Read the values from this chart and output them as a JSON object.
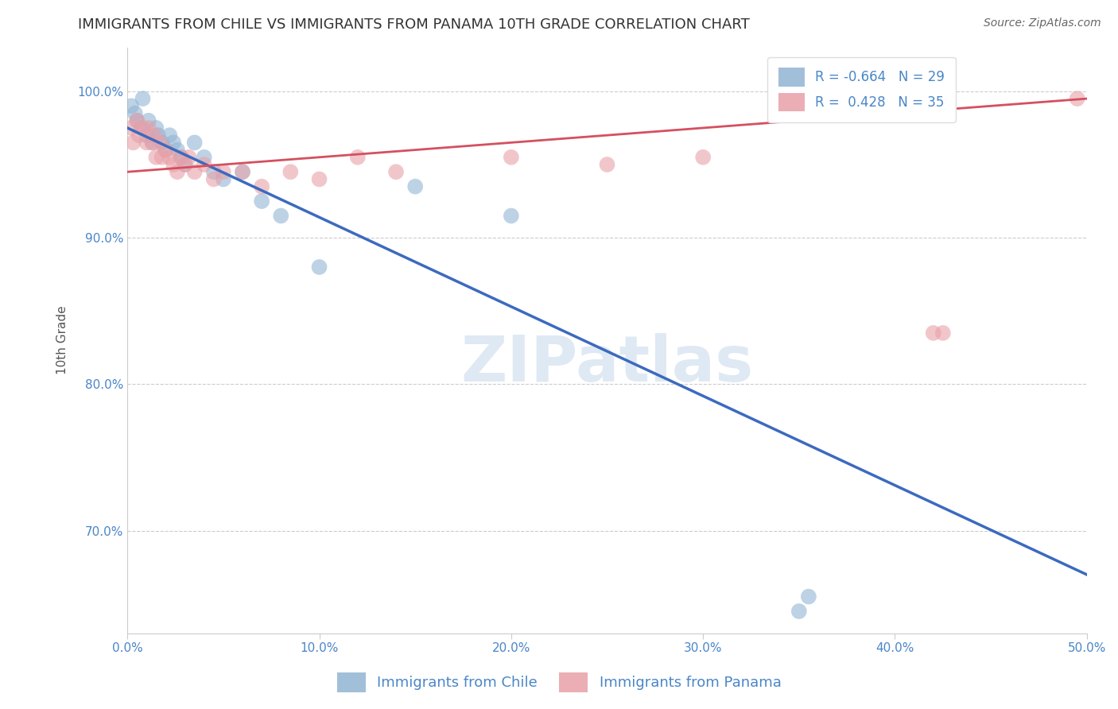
{
  "title": "IMMIGRANTS FROM CHILE VS IMMIGRANTS FROM PANAMA 10TH GRADE CORRELATION CHART",
  "source": "Source: ZipAtlas.com",
  "ylabel": "10th Grade",
  "watermark": "ZIPatlas",
  "xlim": [
    0.0,
    50.0
  ],
  "ylim": [
    63.0,
    103.0
  ],
  "xticks": [
    0.0,
    10.0,
    20.0,
    30.0,
    40.0,
    50.0
  ],
  "yticks": [
    70.0,
    80.0,
    90.0,
    100.0
  ],
  "xtick_labels": [
    "0.0%",
    "10.0%",
    "20.0%",
    "30.0%",
    "40.0%",
    "50.0%"
  ],
  "ytick_labels": [
    "70.0%",
    "80.0%",
    "90.0%",
    "100.0%"
  ],
  "chile_color": "#92b4d4",
  "panama_color": "#e8a0a8",
  "chile_line_color": "#3c6abf",
  "panama_line_color": "#d45060",
  "chile_R": -0.664,
  "chile_N": 29,
  "panama_R": 0.428,
  "panama_N": 35,
  "legend_chile_label": "Immigrants from Chile",
  "legend_panama_label": "Immigrants from Panama",
  "chile_scatter_x": [
    0.2,
    0.4,
    0.5,
    0.7,
    0.8,
    1.0,
    1.1,
    1.3,
    1.5,
    1.6,
    1.8,
    2.0,
    2.2,
    2.4,
    2.6,
    2.8,
    3.0,
    3.5,
    4.0,
    4.5,
    5.0,
    6.0,
    7.0,
    8.0,
    10.0,
    15.0,
    20.0,
    35.0,
    35.5
  ],
  "chile_scatter_y": [
    99.0,
    98.5,
    98.0,
    97.5,
    99.5,
    97.0,
    98.0,
    96.5,
    97.5,
    97.0,
    96.5,
    96.0,
    97.0,
    96.5,
    96.0,
    95.5,
    95.0,
    96.5,
    95.5,
    94.5,
    94.0,
    94.5,
    92.5,
    91.5,
    88.0,
    93.5,
    91.5,
    64.5,
    65.5
  ],
  "panama_scatter_x": [
    0.2,
    0.3,
    0.5,
    0.6,
    0.8,
    1.0,
    1.1,
    1.3,
    1.4,
    1.5,
    1.7,
    1.8,
    2.0,
    2.2,
    2.4,
    2.6,
    2.8,
    3.0,
    3.2,
    3.5,
    4.0,
    4.5,
    5.0,
    6.0,
    7.0,
    8.5,
    10.0,
    12.0,
    14.0,
    20.0,
    25.0,
    30.0,
    42.0,
    42.5,
    49.5
  ],
  "panama_scatter_y": [
    97.5,
    96.5,
    98.0,
    97.0,
    97.5,
    96.5,
    97.5,
    96.5,
    97.0,
    95.5,
    96.5,
    95.5,
    96.0,
    95.5,
    95.0,
    94.5,
    95.5,
    95.0,
    95.5,
    94.5,
    95.0,
    94.0,
    94.5,
    94.5,
    93.5,
    94.5,
    94.0,
    95.5,
    94.5,
    95.5,
    95.0,
    95.5,
    83.5,
    83.5,
    99.5
  ],
  "background_color": "#ffffff",
  "grid_color": "#cccccc",
  "tick_label_color": "#4a86c8",
  "title_fontsize": 13,
  "axis_label_fontsize": 11,
  "tick_fontsize": 11,
  "legend_fontsize": 12,
  "chile_line_x": [
    0.0,
    50.0
  ],
  "chile_line_y": [
    97.5,
    67.0
  ],
  "panama_line_x": [
    0.0,
    50.0
  ],
  "panama_line_y": [
    94.5,
    99.5
  ]
}
